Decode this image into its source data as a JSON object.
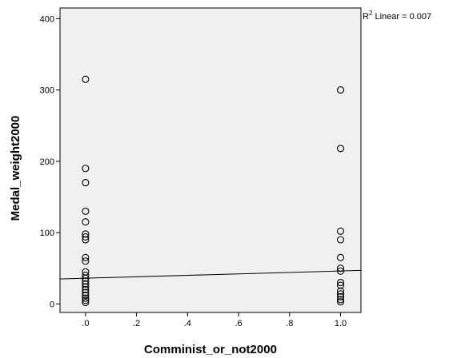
{
  "chart_data": {
    "type": "scatter",
    "title": "",
    "xlabel": "Comminist_or_not2000",
    "ylabel": "Medal_weight2000",
    "xlim": [
      -0.1,
      1.08
    ],
    "ylim": [
      -12,
      415
    ],
    "x_ticks": [
      {
        "value": 0.0,
        "label": ".0"
      },
      {
        "value": 0.2,
        "label": ".2"
      },
      {
        "value": 0.4,
        "label": ".4"
      },
      {
        "value": 0.6,
        "label": ".6"
      },
      {
        "value": 0.8,
        "label": ".8"
      },
      {
        "value": 1.0,
        "label": "1.0"
      }
    ],
    "y_ticks": [
      {
        "value": 0,
        "label": "0"
      },
      {
        "value": 100,
        "label": "100"
      },
      {
        "value": 200,
        "label": "200"
      },
      {
        "value": 300,
        "label": "300"
      },
      {
        "value": 400,
        "label": "400"
      }
    ],
    "grid": false,
    "points": [
      {
        "x": 0,
        "y": 315
      },
      {
        "x": 0,
        "y": 190
      },
      {
        "x": 0,
        "y": 170
      },
      {
        "x": 0,
        "y": 130
      },
      {
        "x": 0,
        "y": 115
      },
      {
        "x": 0,
        "y": 98
      },
      {
        "x": 0,
        "y": 94
      },
      {
        "x": 0,
        "y": 90
      },
      {
        "x": 0,
        "y": 65
      },
      {
        "x": 0,
        "y": 60
      },
      {
        "x": 0,
        "y": 45
      },
      {
        "x": 0,
        "y": 40
      },
      {
        "x": 0,
        "y": 36
      },
      {
        "x": 0,
        "y": 32
      },
      {
        "x": 0,
        "y": 28
      },
      {
        "x": 0,
        "y": 24
      },
      {
        "x": 0,
        "y": 20
      },
      {
        "x": 0,
        "y": 16
      },
      {
        "x": 0,
        "y": 12
      },
      {
        "x": 0,
        "y": 8
      },
      {
        "x": 0,
        "y": 5
      },
      {
        "x": 0,
        "y": 2
      },
      {
        "x": 1,
        "y": 300
      },
      {
        "x": 1,
        "y": 218
      },
      {
        "x": 1,
        "y": 102
      },
      {
        "x": 1,
        "y": 90
      },
      {
        "x": 1,
        "y": 65
      },
      {
        "x": 1,
        "y": 50
      },
      {
        "x": 1,
        "y": 46
      },
      {
        "x": 1,
        "y": 30
      },
      {
        "x": 1,
        "y": 26
      },
      {
        "x": 1,
        "y": 18
      },
      {
        "x": 1,
        "y": 14
      },
      {
        "x": 1,
        "y": 10
      },
      {
        "x": 1,
        "y": 6
      },
      {
        "x": 1,
        "y": 3
      }
    ],
    "fit_line": {
      "x": [
        -0.1,
        1.08
      ],
      "y": [
        35,
        47
      ]
    },
    "annotation": {
      "base": "R",
      "sup": "2",
      "text": " Linear = 0.007"
    },
    "colors": {
      "plot_bg": "#f0f0f0",
      "marker": "#000000",
      "line": "#000000"
    }
  }
}
